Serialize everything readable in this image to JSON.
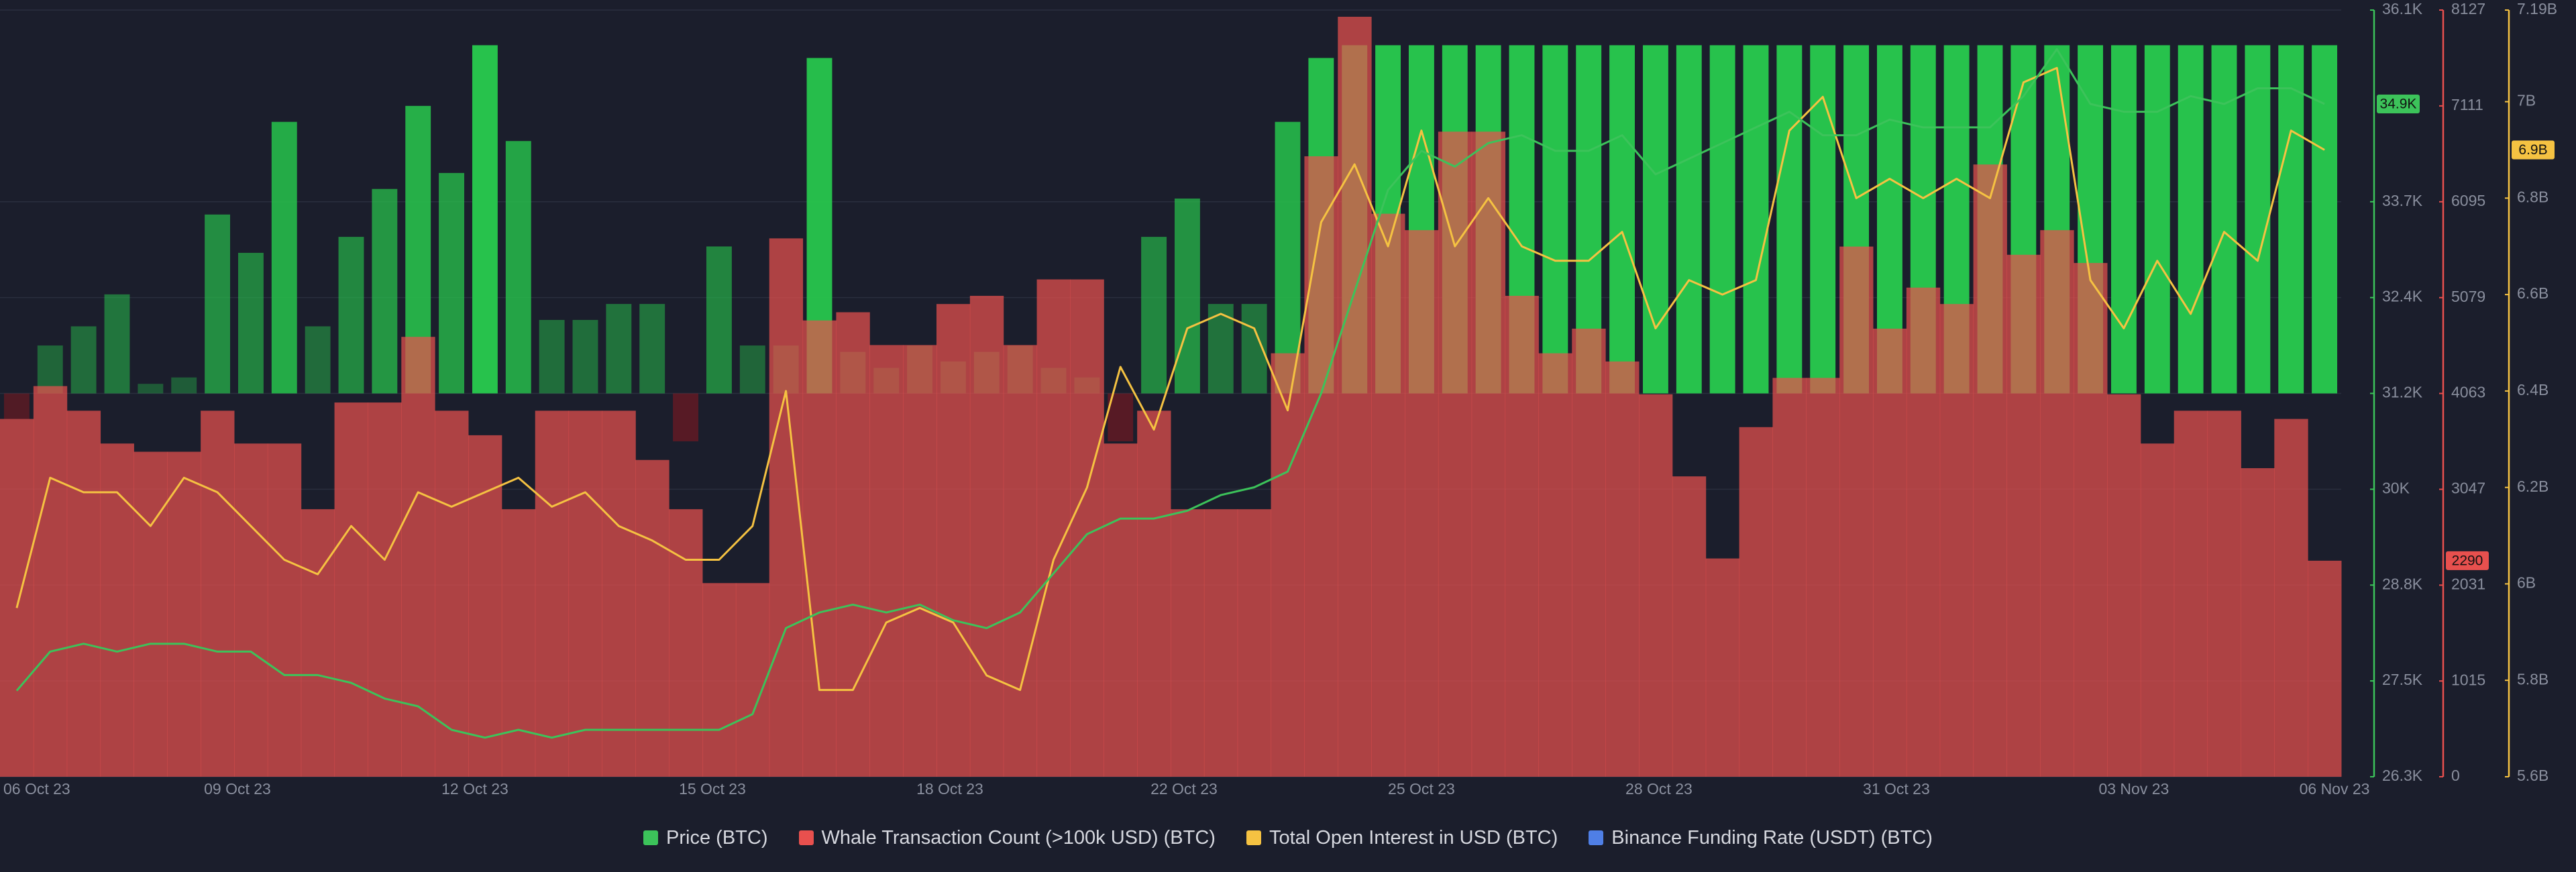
{
  "chart_data": {
    "type": "combo",
    "x": [
      0,
      1,
      2,
      3,
      4,
      5,
      6,
      7,
      8,
      9,
      10,
      11,
      12,
      13,
      14,
      15,
      16,
      17,
      18,
      19,
      20,
      21,
      22,
      23,
      24,
      25,
      26,
      27,
      28,
      29,
      30,
      31,
      32,
      33,
      34,
      35,
      36,
      37,
      38,
      39,
      40,
      41,
      42,
      43,
      44,
      45,
      46,
      47,
      48,
      49,
      50,
      51,
      52,
      53,
      54,
      55,
      56,
      57,
      58,
      59,
      60,
      61,
      62,
      63,
      64,
      65,
      66,
      67,
      68,
      69
    ],
    "xlim": [
      0,
      70
    ],
    "xticks": [
      {
        "value": 1.1,
        "label": "06 Oct 23"
      },
      {
        "value": 7.1,
        "label": "09 Oct 23"
      },
      {
        "value": 14.2,
        "label": "12 Oct 23"
      },
      {
        "value": 21.3,
        "label": "15 Oct 23"
      },
      {
        "value": 28.4,
        "label": "18 Oct 23"
      },
      {
        "value": 35.4,
        "label": "22 Oct 23"
      },
      {
        "value": 42.5,
        "label": "25 Oct 23"
      },
      {
        "value": 49.6,
        "label": "28 Oct 23"
      },
      {
        "value": 56.7,
        "label": "31 Oct 23"
      },
      {
        "value": 63.8,
        "label": "03 Nov 23"
      },
      {
        "value": 69.8,
        "label": "06 Nov 23"
      }
    ],
    "ylim": [
      26300,
      36100
    ],
    "yticks": [
      {
        "value": 26300,
        "label": "26.3K"
      },
      {
        "value": 27525,
        "label": "27.5K"
      },
      {
        "value": 28750,
        "label": "28.8K"
      },
      {
        "value": 29975,
        "label": "30K"
      },
      {
        "value": 31200,
        "label": "31.2K"
      },
      {
        "value": 32425,
        "label": "32.4K"
      },
      {
        "value": 33650,
        "label": "33.7K"
      },
      {
        "value": 36100,
        "label": "36.1K"
      }
    ],
    "y2lim": [
      0,
      8127
    ],
    "y2ticks": [
      0,
      1015,
      2031,
      3047,
      4063,
      5079,
      6095,
      7111,
      8127
    ],
    "y3lim": [
      5600000000.0,
      7190000000.0
    ],
    "y3ticks": [
      {
        "value": 5600000000.0,
        "label": "5.6B"
      },
      {
        "value": 5800000000.0,
        "label": "5.8B"
      },
      {
        "value": 6000000000.0,
        "label": "6B"
      },
      {
        "value": 6200000000.0,
        "label": "6.2B"
      },
      {
        "value": 6400000000.0,
        "label": "6.4B"
      },
      {
        "value": 6600000000.0,
        "label": "6.6B"
      },
      {
        "value": 6800000000.0,
        "label": "6.8B"
      },
      {
        "value": 7000000000.0,
        "label": "7B"
      },
      {
        "value": 7190000000.0,
        "label": "7.19B"
      }
    ],
    "y4lim": [
      -0.012,
      0.012
    ],
    "grid": true,
    "series": [
      {
        "name": "Price (BTC)",
        "type": "line",
        "axis": "y",
        "color": "#3cc35a",
        "current": {
          "value": 34900,
          "label": "34.9K"
        },
        "values": [
          27400,
          27900,
          28000,
          27900,
          28000,
          28000,
          27900,
          27900,
          27600,
          27600,
          27500,
          27300,
          27200,
          26900,
          26800,
          26900,
          26800,
          26900,
          26900,
          26900,
          26900,
          26900,
          27100,
          28200,
          28400,
          28500,
          28400,
          28500,
          28300,
          28200,
          28400,
          28900,
          29400,
          29600,
          29600,
          29700,
          29900,
          30000,
          30200,
          31200,
          32500,
          33800,
          34300,
          34100,
          34400,
          34500,
          34300,
          34300,
          34500,
          34000,
          34200,
          34400,
          34600,
          34800,
          34500,
          34500,
          34700,
          34600,
          34600,
          34600,
          35000,
          35600,
          34900,
          34800,
          34800,
          35000,
          34900,
          35100,
          35100,
          34900
        ]
      },
      {
        "name": "Whale Transaction Count (>100k USD) (BTC)",
        "type": "bar",
        "axis": "y2",
        "color": "#e8504e",
        "current": 2290,
        "values": [
          3793,
          4141,
          3880,
          3532,
          3445,
          3445,
          3880,
          3532,
          3532,
          2836,
          3967,
          3967,
          4663,
          3880,
          3620,
          2836,
          3880,
          3880,
          3880,
          3358,
          2836,
          2053,
          2053,
          5707,
          4837,
          4924,
          4576,
          4576,
          5011,
          5098,
          4576,
          5272,
          5272,
          3532,
          3880,
          2836,
          2836,
          2836,
          4489,
          6577,
          8056,
          5968,
          5794,
          6838,
          6838,
          5098,
          4489,
          4750,
          4402,
          4054,
          3184,
          2314,
          3706,
          4228,
          4228,
          5620,
          4750,
          5185,
          5011,
          6490,
          5533,
          5794,
          5446,
          4054,
          3532,
          3880,
          3880,
          3271,
          3793,
          2290
        ]
      },
      {
        "name": "Total Open Interest in USD (BTC)",
        "type": "line",
        "axis": "y3",
        "color": "#f5c242",
        "current": {
          "value": 6900000000.0,
          "label": "6.9B"
        },
        "values": [
          5950000000.0,
          6220000000.0,
          6190000000.0,
          6190000000.0,
          6120000000.0,
          6220000000.0,
          6190000000.0,
          6120000000.0,
          6050000000.0,
          6020000000.0,
          6120000000.0,
          6050000000.0,
          6190000000.0,
          6160000000.0,
          6190000000.0,
          6220000000.0,
          6160000000.0,
          6190000000.0,
          6120000000.0,
          6090000000.0,
          6050000000.0,
          6050000000.0,
          6120000000.0,
          6400000000.0,
          5780000000.0,
          5780000000.0,
          5920000000.0,
          5950000000.0,
          5920000000.0,
          5810000000.0,
          5780000000.0,
          6050000000.0,
          6200000000.0,
          6450000000.0,
          6320000000.0,
          6530000000.0,
          6560000000.0,
          6530000000.0,
          6360000000.0,
          6750000000.0,
          6870000000.0,
          6700000000.0,
          6940000000.0,
          6700000000.0,
          6800000000.0,
          6700000000.0,
          6670000000.0,
          6670000000.0,
          6730000000.0,
          6530000000.0,
          6630000000.0,
          6600000000.0,
          6630000000.0,
          6940000000.0,
          7010000000.0,
          6800000000.0,
          6840000000.0,
          6800000000.0,
          6840000000.0,
          6800000000.0,
          7040000000.0,
          7070000000.0,
          6630000000.0,
          6530000000.0,
          6670000000.0,
          6560000000.0,
          6730000000.0,
          6670000000.0,
          6940000000.0,
          6900000000.0
        ]
      },
      {
        "name": "Binance Funding Rate (USDT) (BTC)",
        "type": "bar",
        "axis": "y4",
        "color": "#4f7fe6",
        "positive_color": "#27c24c",
        "negative_color": "#a3161d",
        "values": [
          -0.0008,
          0.0015,
          0.0021,
          0.0031,
          0.0003,
          0.0005,
          0.0056,
          0.0044,
          0.0085,
          0.0021,
          0.0049,
          0.0064,
          0.009,
          0.0069,
          0.0109,
          0.0079,
          0.0023,
          0.0023,
          0.0028,
          0.0028,
          -0.0015,
          0.0046,
          0.0015,
          0.0015,
          0.0105,
          0.0013,
          0.0008,
          0.0015,
          0.001,
          0.0013,
          0.0015,
          0.0008,
          0.0005,
          -0.0015,
          0.0049,
          0.0061,
          0.0028,
          0.0028,
          0.0085,
          0.0105,
          0.0109,
          0.0109,
          0.0109,
          0.0109,
          0.0109,
          0.0109,
          0.0109,
          0.0109,
          0.0109,
          0.0109,
          0.0109,
          0.0109,
          0.0109,
          0.0109,
          0.0109,
          0.0109,
          0.0109,
          0.0109,
          0.0109,
          0.0109,
          0.0109,
          0.0109,
          0.0109,
          0.0109,
          0.0109,
          0.0109,
          0.0109,
          0.0109,
          0.0109,
          0.0109
        ]
      }
    ]
  }
}
